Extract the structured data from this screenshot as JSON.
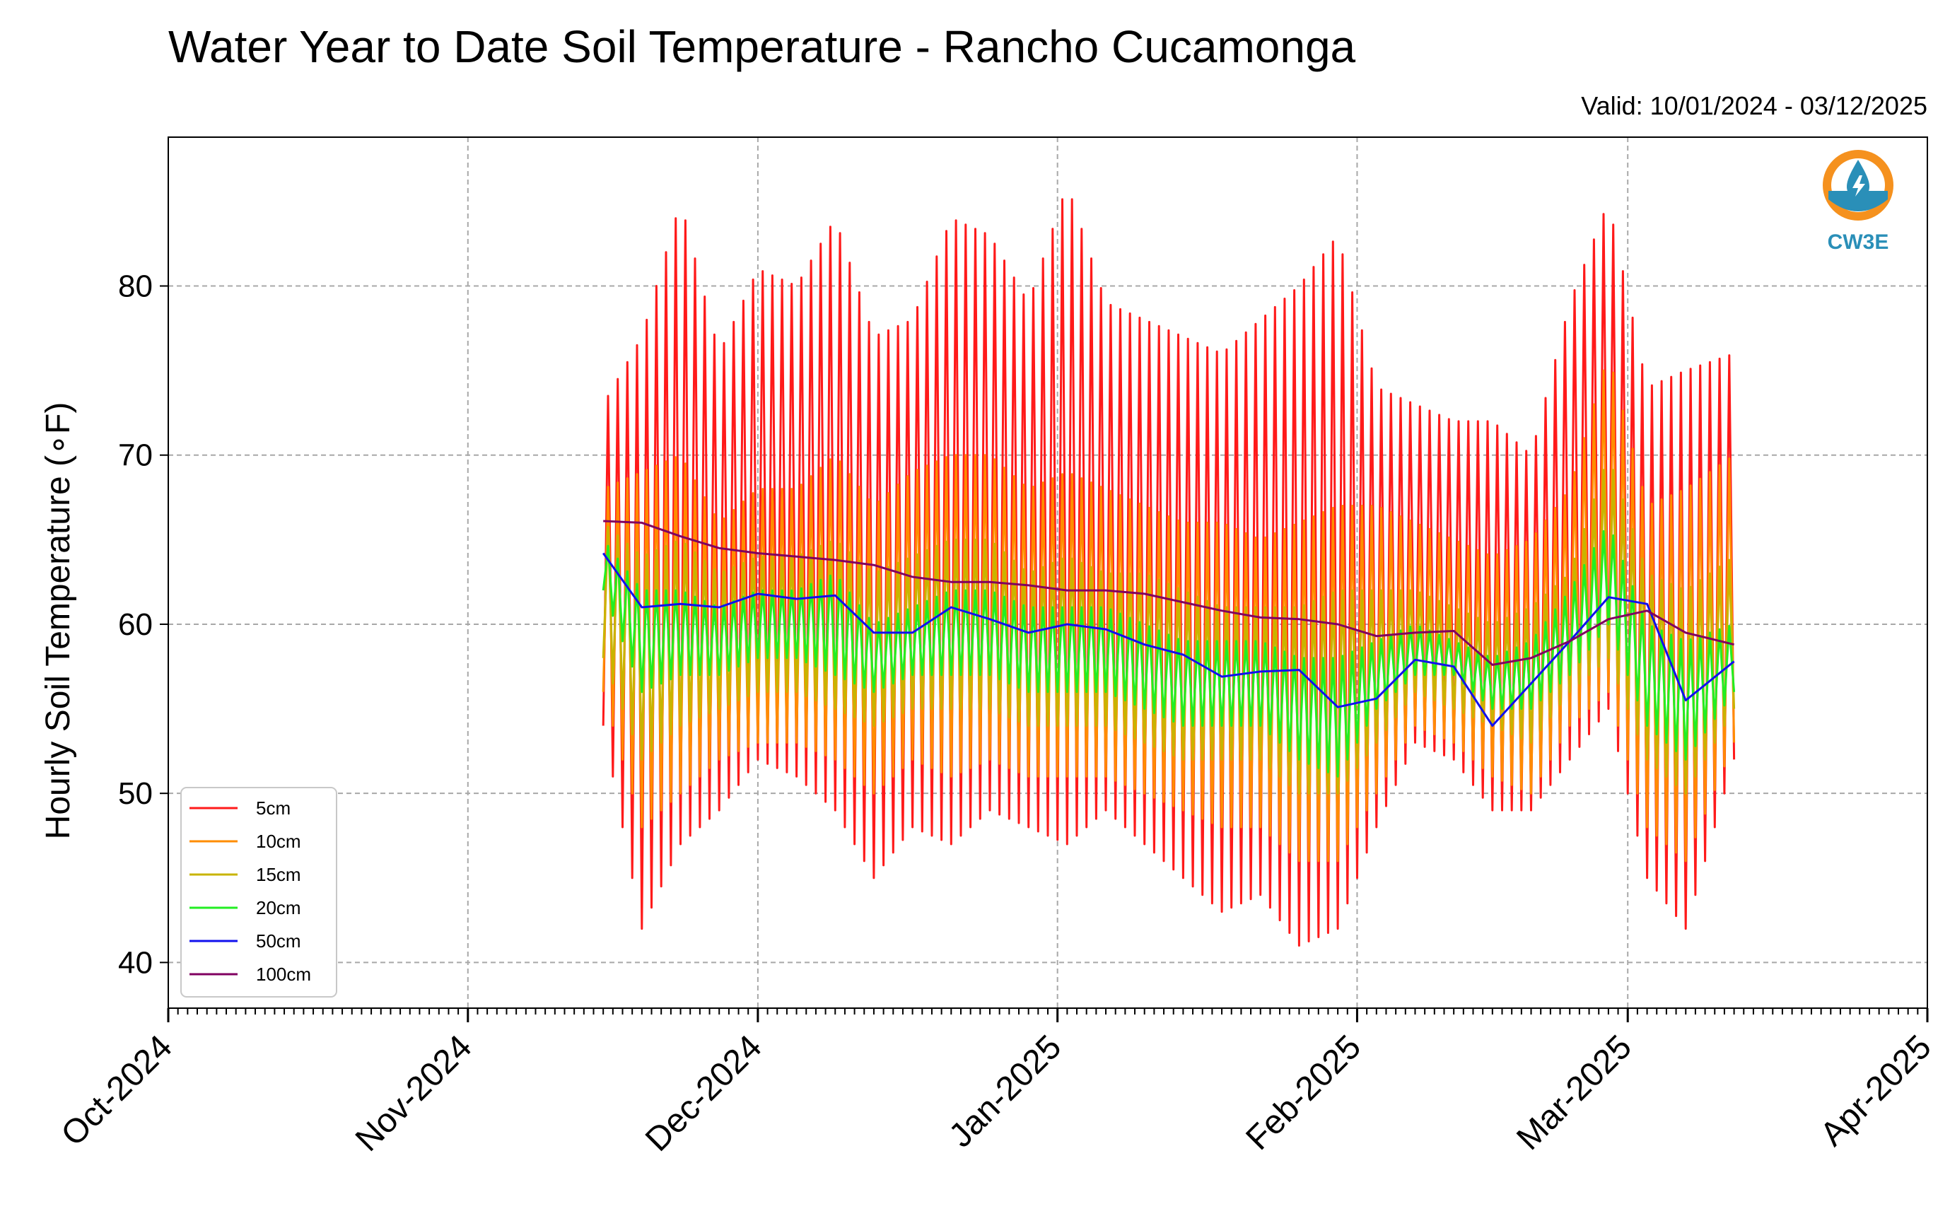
{
  "chart_data": {
    "type": "line",
    "title": "Water Year to Date Soil Temperature - Rancho Cucamonga",
    "subtitle": "Valid: 10/01/2024 - 03/12/2025",
    "ylabel": "Hourly Soil Temperature (∘F)",
    "xlabel": "",
    "xlim": [
      "2024-10-01",
      "2025-04-01"
    ],
    "ylim": [
      37.3,
      88.8
    ],
    "y_ticks": [
      40,
      50,
      60,
      70,
      80
    ],
    "x_ticks": [
      {
        "date": "2024-10-01",
        "label": "Oct-2024"
      },
      {
        "date": "2024-11-01",
        "label": "Nov-2024"
      },
      {
        "date": "2024-12-01",
        "label": "Dec-2024"
      },
      {
        "date": "2025-01-01",
        "label": "Jan-2025"
      },
      {
        "date": "2025-02-01",
        "label": "Feb-2025"
      },
      {
        "date": "2025-03-01",
        "label": "Mar-2025"
      },
      {
        "date": "2025-04-01",
        "label": "Apr-2025"
      }
    ],
    "grid": true,
    "legend_position": "lower-left",
    "series": [
      {
        "name": "5cm",
        "color": "#ff1a1a",
        "width": 3,
        "x": [
          "2024-11-15",
          "2024-11-19",
          "2024-11-23",
          "2024-11-27",
          "2024-12-01",
          "2024-12-05",
          "2024-12-09",
          "2024-12-13",
          "2024-12-17",
          "2024-12-21",
          "2024-12-25",
          "2024-12-29",
          "2025-01-02",
          "2025-01-06",
          "2025-01-10",
          "2025-01-14",
          "2025-01-18",
          "2025-01-22",
          "2025-01-26",
          "2025-01-30",
          "2025-02-03",
          "2025-02-07",
          "2025-02-11",
          "2025-02-15",
          "2025-02-19",
          "2025-02-23",
          "2025-02-27",
          "2025-03-03",
          "2025-03-07",
          "2025-03-12"
        ],
        "max": [
          73,
          77,
          85,
          76,
          81,
          80,
          84,
          77,
          78,
          84,
          83,
          79,
          86,
          79,
          78,
          77,
          76,
          78,
          80,
          83,
          74,
          73,
          72,
          72,
          70,
          79,
          85,
          74,
          75,
          76
        ],
        "min": [
          54,
          42,
          47,
          49,
          52,
          51,
          49,
          45,
          48,
          47,
          49,
          48,
          47,
          49,
          47,
          45,
          43,
          44,
          41,
          42,
          48,
          53,
          52,
          49,
          49,
          52,
          55,
          45,
          42,
          52
        ]
      },
      {
        "name": "10cm",
        "color": "#ff8c00",
        "width": 3,
        "x": [
          "2024-11-15",
          "2024-11-19",
          "2024-11-23",
          "2024-11-27",
          "2024-12-01",
          "2024-12-05",
          "2024-12-09",
          "2024-12-13",
          "2024-12-17",
          "2024-12-21",
          "2024-12-25",
          "2024-12-29",
          "2025-01-02",
          "2025-01-06",
          "2025-01-10",
          "2025-01-14",
          "2025-01-18",
          "2025-01-22",
          "2025-01-26",
          "2025-01-30",
          "2025-02-03",
          "2025-02-07",
          "2025-02-11",
          "2025-02-15",
          "2025-02-19",
          "2025-02-23",
          "2025-02-27",
          "2025-03-03",
          "2025-03-07",
          "2025-03-12"
        ],
        "max": [
          68,
          69,
          70,
          66,
          68,
          68,
          70,
          67,
          69,
          70,
          70,
          68,
          69,
          68,
          67,
          66,
          66,
          65,
          66,
          67,
          67,
          66,
          65,
          64,
          65,
          68,
          76,
          67,
          68,
          70
        ],
        "min": [
          56,
          48,
          50,
          52,
          53,
          53,
          52,
          50,
          52,
          51,
          52,
          51,
          51,
          51,
          50,
          49,
          48,
          48,
          46,
          46,
          50,
          54,
          53,
          51,
          50,
          54,
          56,
          48,
          46,
          53
        ]
      },
      {
        "name": "15cm",
        "color": "#c8b400",
        "width": 3,
        "x": [
          "2024-11-15",
          "2024-11-19",
          "2024-11-23",
          "2024-11-27",
          "2024-12-01",
          "2024-12-05",
          "2024-12-09",
          "2024-12-13",
          "2024-12-17",
          "2024-12-21",
          "2024-12-25",
          "2024-12-29",
          "2025-01-02",
          "2025-01-06",
          "2025-01-10",
          "2025-01-14",
          "2025-01-18",
          "2025-01-22",
          "2025-01-26",
          "2025-01-30",
          "2025-02-03",
          "2025-02-07",
          "2025-02-11",
          "2025-02-15",
          "2025-02-19",
          "2025-02-23",
          "2025-02-27",
          "2025-03-03",
          "2025-03-07",
          "2025-03-12"
        ],
        "max": [
          66,
          64,
          65,
          63,
          64,
          64,
          65,
          63,
          64,
          65,
          65,
          63,
          64,
          63,
          63,
          62,
          61,
          61,
          61,
          62,
          62,
          62,
          61,
          60,
          61,
          63,
          70,
          63,
          62,
          64
        ],
        "min": [
          58,
          52,
          54,
          55,
          56,
          56,
          55,
          54,
          55,
          55,
          55,
          54,
          54,
          54,
          53,
          52,
          52,
          52,
          50,
          50,
          53,
          56,
          55,
          54,
          53,
          56,
          58,
          52,
          50,
          55
        ]
      },
      {
        "name": "20cm",
        "color": "#22ee22",
        "width": 3,
        "x": [
          "2024-11-15",
          "2024-11-19",
          "2024-11-23",
          "2024-11-27",
          "2024-12-01",
          "2024-12-05",
          "2024-12-09",
          "2024-12-13",
          "2024-12-17",
          "2024-12-21",
          "2024-12-25",
          "2024-12-29",
          "2025-01-02",
          "2025-01-06",
          "2025-01-10",
          "2025-01-14",
          "2025-01-18",
          "2025-01-22",
          "2025-01-26",
          "2025-01-30",
          "2025-02-03",
          "2025-02-07",
          "2025-02-11",
          "2025-02-15",
          "2025-02-19",
          "2025-02-23",
          "2025-02-27",
          "2025-03-03",
          "2025-03-07",
          "2025-03-12"
        ],
        "max": [
          65,
          62,
          62,
          61,
          62,
          62,
          63,
          60,
          61,
          62,
          62,
          61,
          61,
          61,
          60,
          59,
          59,
          59,
          58,
          58,
          59,
          60,
          59,
          58,
          59,
          62,
          66,
          60,
          59,
          60
        ],
        "min": [
          62,
          56,
          57,
          57,
          58,
          58,
          57,
          56,
          57,
          57,
          57,
          56,
          56,
          56,
          55,
          54,
          54,
          54,
          52,
          51,
          55,
          57,
          57,
          55,
          55,
          57,
          60,
          54,
          52,
          56
        ]
      },
      {
        "name": "50cm",
        "color": "#1010ee",
        "width": 3,
        "x": [
          "2024-11-15",
          "2024-11-19",
          "2024-11-23",
          "2024-11-27",
          "2024-12-01",
          "2024-12-05",
          "2024-12-09",
          "2024-12-13",
          "2024-12-17",
          "2024-12-21",
          "2024-12-25",
          "2024-12-29",
          "2025-01-02",
          "2025-01-06",
          "2025-01-10",
          "2025-01-14",
          "2025-01-18",
          "2025-01-22",
          "2025-01-26",
          "2025-01-30",
          "2025-02-03",
          "2025-02-07",
          "2025-02-11",
          "2025-02-15",
          "2025-02-19",
          "2025-02-23",
          "2025-02-27",
          "2025-03-03",
          "2025-03-07",
          "2025-03-12"
        ],
        "y": [
          64.2,
          61.0,
          61.2,
          61.0,
          61.8,
          61.5,
          61.7,
          59.5,
          59.5,
          61.0,
          60.3,
          59.5,
          60.0,
          59.7,
          58.8,
          58.2,
          56.9,
          57.2,
          57.3,
          55.1,
          55.6,
          57.9,
          57.5,
          54.0,
          56.5,
          59.0,
          61.6,
          61.2,
          55.5,
          57.8
        ]
      },
      {
        "name": "100cm",
        "color": "#800060",
        "width": 3,
        "x": [
          "2024-11-15",
          "2024-11-19",
          "2024-11-23",
          "2024-11-27",
          "2024-12-01",
          "2024-12-05",
          "2024-12-09",
          "2024-12-13",
          "2024-12-17",
          "2024-12-21",
          "2024-12-25",
          "2024-12-29",
          "2025-01-02",
          "2025-01-06",
          "2025-01-10",
          "2025-01-14",
          "2025-01-18",
          "2025-01-22",
          "2025-01-26",
          "2025-01-30",
          "2025-02-03",
          "2025-02-07",
          "2025-02-11",
          "2025-02-15",
          "2025-02-19",
          "2025-02-23",
          "2025-02-27",
          "2025-03-03",
          "2025-03-07",
          "2025-03-12"
        ],
        "y": [
          66.1,
          66.0,
          65.2,
          64.5,
          64.2,
          64.0,
          63.8,
          63.5,
          62.8,
          62.5,
          62.5,
          62.3,
          62.0,
          62.0,
          61.8,
          61.3,
          60.8,
          60.4,
          60.3,
          60.0,
          59.3,
          59.5,
          59.6,
          57.6,
          58.0,
          59.0,
          60.3,
          60.8,
          59.5,
          58.8
        ]
      }
    ]
  },
  "logo": {
    "text": "CW3E"
  }
}
